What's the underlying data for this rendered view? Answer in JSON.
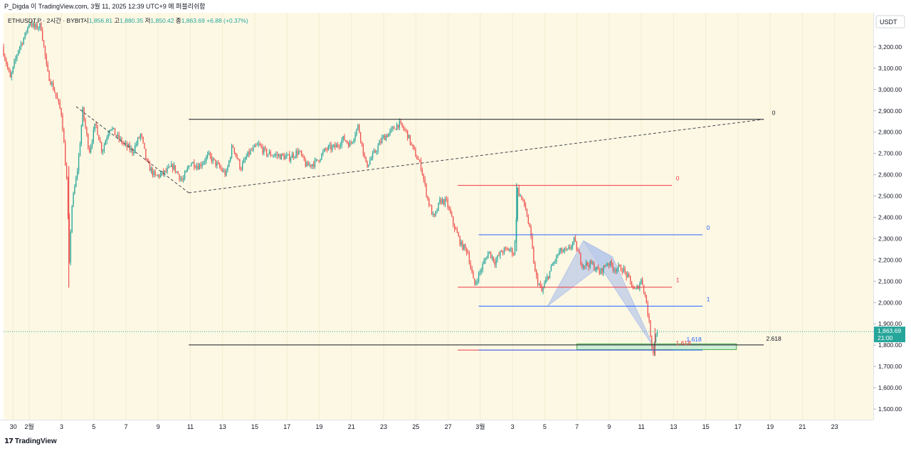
{
  "header": {
    "attribution": "P_Digda 이 TradingView.com, 3월 11, 2025 12:39 UTC+9 에 퍼블리쉬함"
  },
  "footer": {
    "brand": "TradingView",
    "brand_icon": "tradingview-logo-icon"
  },
  "colors": {
    "background": "#fdf8e4",
    "up": "#26a69a",
    "down": "#ef5350",
    "fib_red": "#f23645",
    "fib_blue": "#2962ff",
    "pattern_fill": "#b6c7e8",
    "zone_fill": "#c8ecd4",
    "price_tag": "#26a69a"
  },
  "chart_data": {
    "type": "candlestick",
    "symbol_line": {
      "symbol": "ETHUSDT.P · 2시간 · BYBIT",
      "open_label": "시",
      "open": "1,856.81",
      "high_label": "고",
      "high": "1,880.35",
      "low_label": "저",
      "low": "1,850.42",
      "close_label": "종",
      "close": "1,863.69",
      "change": "+6.88 (+0.37%)"
    },
    "currency": "USDT",
    "ylim": [
      1450,
      3360
    ],
    "y_ticks": [
      {
        "value": 3200,
        "label": "3,200.00"
      },
      {
        "value": 3100,
        "label": "3,100.00"
      },
      {
        "value": 3000,
        "label": "3,000.00"
      },
      {
        "value": 2900,
        "label": "2,900.00"
      },
      {
        "value": 2800,
        "label": "2,800.00"
      },
      {
        "value": 2700,
        "label": "2,700.00"
      },
      {
        "value": 2600,
        "label": "2,600.00"
      },
      {
        "value": 2500,
        "label": "2,500.00"
      },
      {
        "value": 2400,
        "label": "2,400.00"
      },
      {
        "value": 2300,
        "label": "2,300.00"
      },
      {
        "value": 2200,
        "label": "2,200.00"
      },
      {
        "value": 2100,
        "label": "2,100.00"
      },
      {
        "value": 2000,
        "label": "2,000.00"
      },
      {
        "value": 1900,
        "label": "1,900.00"
      },
      {
        "value": 1800,
        "label": "1,800.00"
      },
      {
        "value": 1700,
        "label": "1,700.00"
      },
      {
        "value": 1600,
        "label": "1,600.00"
      },
      {
        "value": 1500,
        "label": "1,500.00"
      }
    ],
    "x_range_days": [
      -1.6,
      52.4
    ],
    "x_ticks": [
      {
        "day": -1,
        "label": "30"
      },
      {
        "day": 0,
        "label": "2월"
      },
      {
        "day": 2,
        "label": "3"
      },
      {
        "day": 4,
        "label": "5"
      },
      {
        "day": 6,
        "label": "7"
      },
      {
        "day": 8,
        "label": "9"
      },
      {
        "day": 10,
        "label": "11"
      },
      {
        "day": 12,
        "label": "13"
      },
      {
        "day": 14,
        "label": "15"
      },
      {
        "day": 16,
        "label": "17"
      },
      {
        "day": 18,
        "label": "19"
      },
      {
        "day": 20,
        "label": "21"
      },
      {
        "day": 22,
        "label": "23"
      },
      {
        "day": 24,
        "label": "25"
      },
      {
        "day": 26,
        "label": "27"
      },
      {
        "day": 28,
        "label": "3월"
      },
      {
        "day": 30,
        "label": "3"
      },
      {
        "day": 32,
        "label": "5"
      },
      {
        "day": 34,
        "label": "7"
      },
      {
        "day": 36,
        "label": "9"
      },
      {
        "day": 38,
        "label": "11"
      },
      {
        "day": 40,
        "label": "13"
      },
      {
        "day": 42,
        "label": "15"
      },
      {
        "day": 44,
        "label": "17"
      },
      {
        "day": 46,
        "label": "19"
      },
      {
        "day": 48,
        "label": "21"
      },
      {
        "day": 50,
        "label": "23"
      }
    ],
    "price_path": [
      [
        -1.6,
        3200
      ],
      [
        -1.1,
        3050
      ],
      [
        -0.6,
        3190
      ],
      [
        -0.2,
        3250
      ],
      [
        0.1,
        3320
      ],
      [
        0.4,
        3290
      ],
      [
        0.8,
        3300
      ],
      [
        1.2,
        3080
      ],
      [
        1.7,
        2980
      ],
      [
        2.1,
        2880
      ],
      [
        2.45,
        2520
      ],
      [
        2.55,
        2140
      ],
      [
        2.7,
        2440
      ],
      [
        3.1,
        2640
      ],
      [
        3.4,
        2900
      ],
      [
        3.8,
        2710
      ],
      [
        4.2,
        2840
      ],
      [
        4.6,
        2710
      ],
      [
        5.1,
        2830
      ],
      [
        5.5,
        2780
      ],
      [
        6.0,
        2740
      ],
      [
        6.5,
        2710
      ],
      [
        7.0,
        2790
      ],
      [
        7.4,
        2650
      ],
      [
        7.9,
        2590
      ],
      [
        8.5,
        2610
      ],
      [
        9.0,
        2640
      ],
      [
        9.6,
        2570
      ],
      [
        10.1,
        2660
      ],
      [
        10.6,
        2640
      ],
      [
        11.2,
        2690
      ],
      [
        11.8,
        2640
      ],
      [
        12.3,
        2600
      ],
      [
        12.7,
        2740
      ],
      [
        13.2,
        2630
      ],
      [
        13.7,
        2700
      ],
      [
        14.3,
        2740
      ],
      [
        14.8,
        2700
      ],
      [
        15.5,
        2690
      ],
      [
        16.2,
        2680
      ],
      [
        16.8,
        2710
      ],
      [
        17.3,
        2640
      ],
      [
        17.9,
        2660
      ],
      [
        18.5,
        2720
      ],
      [
        19.1,
        2730
      ],
      [
        19.6,
        2770
      ],
      [
        20.0,
        2740
      ],
      [
        20.5,
        2830
      ],
      [
        21.0,
        2640
      ],
      [
        21.5,
        2700
      ],
      [
        22.0,
        2770
      ],
      [
        22.5,
        2800
      ],
      [
        23.0,
        2840
      ],
      [
        23.5,
        2800
      ],
      [
        23.9,
        2720
      ],
      [
        24.4,
        2640
      ],
      [
        24.8,
        2490
      ],
      [
        25.2,
        2390
      ],
      [
        25.6,
        2480
      ],
      [
        26.0,
        2470
      ],
      [
        26.4,
        2370
      ],
      [
        26.9,
        2270
      ],
      [
        27.3,
        2240
      ],
      [
        27.7,
        2080
      ],
      [
        28.1,
        2150
      ],
      [
        28.6,
        2240
      ],
      [
        29.0,
        2190
      ],
      [
        29.4,
        2240
      ],
      [
        29.9,
        2250
      ],
      [
        30.2,
        2230
      ],
      [
        30.4,
        2530
      ],
      [
        30.9,
        2440
      ],
      [
        31.2,
        2320
      ],
      [
        31.5,
        2130
      ],
      [
        31.9,
        2050
      ],
      [
        32.2,
        2110
      ],
      [
        32.6,
        2180
      ],
      [
        33.0,
        2240
      ],
      [
        33.5,
        2240
      ],
      [
        33.9,
        2290
      ],
      [
        34.4,
        2180
      ],
      [
        35.0,
        2180
      ],
      [
        35.5,
        2140
      ],
      [
        36.0,
        2190
      ],
      [
        36.4,
        2160
      ],
      [
        36.9,
        2160
      ],
      [
        37.3,
        2110
      ],
      [
        37.7,
        2050
      ],
      [
        38.1,
        2110
      ],
      [
        38.4,
        2000
      ],
      [
        38.6,
        1880
      ],
      [
        38.8,
        1763
      ],
      [
        39.0,
        1864
      ]
    ],
    "trend_line": {
      "from": [
        9.9,
        2515
      ],
      "to": [
        45.6,
        2860
      ],
      "style": "dashed"
    },
    "fib_black": {
      "color": "#131722",
      "x": [
        9.9,
        45.6
      ],
      "levels": [
        {
          "value": 2860,
          "label": "0"
        },
        {
          "value": 1801,
          "label": "2.618"
        }
      ]
    },
    "fib_red": {
      "color": "#f23645",
      "x": [
        26.6,
        39.9
      ],
      "levels": [
        {
          "value": 2550,
          "label": "0"
        },
        {
          "value": 2072,
          "label": "1"
        },
        {
          "value": 1777,
          "label": "1.618"
        }
      ]
    },
    "fib_blue": {
      "color": "#2962ff",
      "x": [
        27.9,
        41.8
      ],
      "levels": [
        {
          "value": 2318,
          "label": "0"
        },
        {
          "value": 1983,
          "label": "1"
        },
        {
          "value": 1777,
          "label": "1.618"
        }
      ]
    },
    "zone": {
      "x": [
        34.0,
        43.9
      ],
      "y": [
        1779,
        1806
      ]
    },
    "pattern": {
      "points": [
        [
          32.2,
          1985
        ],
        [
          34.4,
          2290
        ],
        [
          36.2,
          2215
        ],
        [
          38.8,
          1786
        ]
      ],
      "color": "#b6c7e8"
    },
    "dashed_wedge": [
      [
        2.9,
        2920
      ],
      [
        9.9,
        2515
      ]
    ],
    "last_price": {
      "value": 1863.69,
      "label": "1,863.69",
      "time": "21:00"
    }
  }
}
